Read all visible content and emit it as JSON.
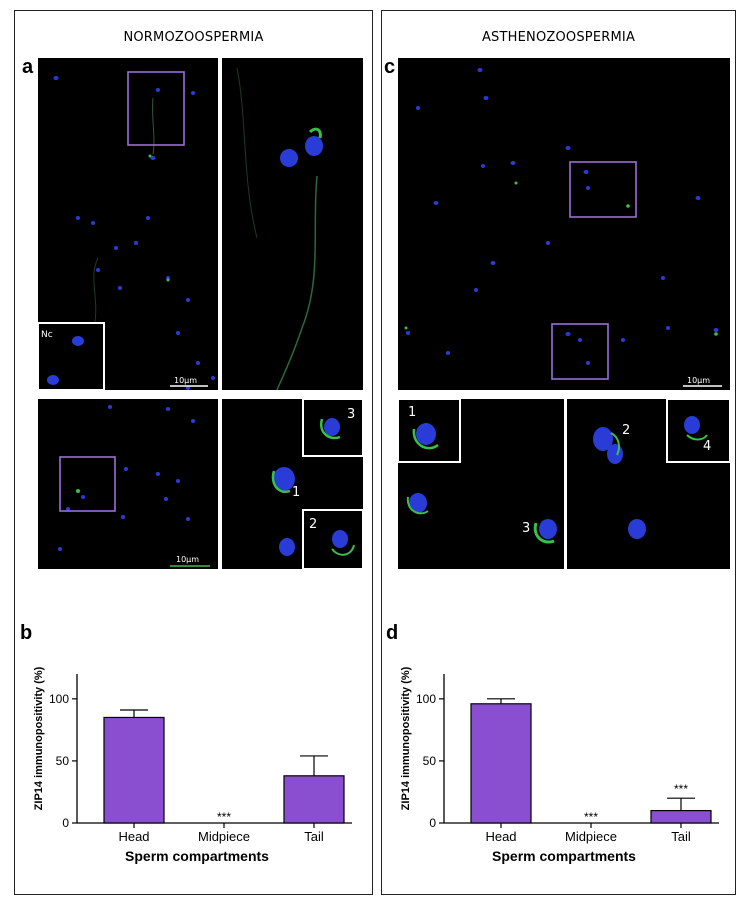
{
  "left_panel": {
    "title": "NORMOZOOSPERMIA",
    "letter_top": "a",
    "letter_bottom": "b",
    "scalebar_top": "10μm",
    "scalebar_bottom": "10μm",
    "inset_nc": "Nc",
    "labels": [
      "1",
      "2",
      "3"
    ]
  },
  "right_panel": {
    "title": "ASTHENOZOOSPERMIA",
    "letter_top": "c",
    "letter_bottom": "d",
    "scalebar_top": "10μm",
    "labels": [
      "1",
      "2",
      "3",
      "4"
    ]
  },
  "colors": {
    "bar": "#8a4fd0",
    "box": "#9a6fd6",
    "nucleus": "#2a3cd8",
    "stain": "#3cbf4a"
  },
  "chart_data": [
    {
      "type": "bar",
      "categories": [
        "Head",
        "Midpiece",
        "Tail"
      ],
      "values": [
        85,
        0,
        38
      ],
      "errors": [
        6,
        0,
        16
      ],
      "annotations": [
        "",
        "***",
        ""
      ],
      "ylabel": "ZIP14 immunopositivity (%)",
      "xlabel": "Sperm compartments",
      "yticks": [
        0,
        50,
        100
      ],
      "ylim": [
        0,
        120
      ]
    },
    {
      "type": "bar",
      "categories": [
        "Head",
        "Midpiece",
        "Tail"
      ],
      "values": [
        96,
        0,
        10
      ],
      "errors": [
        4,
        0,
        10
      ],
      "annotations": [
        "",
        "***",
        "***"
      ],
      "ylabel": "ZIP14 immunopositivity (%)",
      "xlabel": "Sperm compartments",
      "yticks": [
        0,
        50,
        100
      ],
      "ylim": [
        0,
        120
      ]
    }
  ]
}
